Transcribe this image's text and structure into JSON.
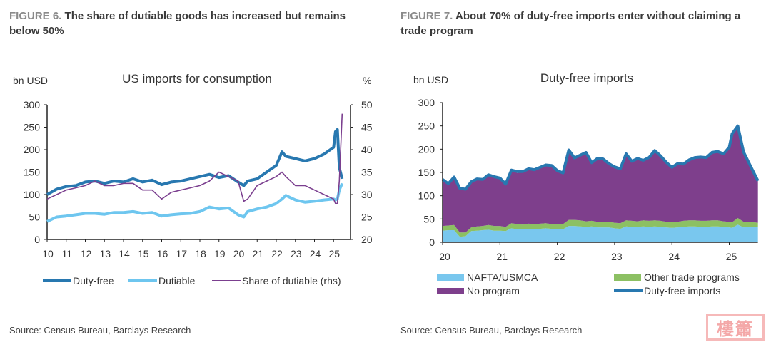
{
  "figure6": {
    "fig_num": "FIGURE 6.",
    "title": "The share of dutiable goods has increased but remains below 50%",
    "source": "Source: Census Bureau, Barclays Research",
    "legend": [
      "Duty-free",
      "Dutiable",
      "Share of dutiable (rhs)"
    ]
  },
  "figure7": {
    "fig_num": "FIGURE 7.",
    "title": "About 70% of duty-free imports enter without claiming a trade program",
    "source": "Source: Census Bureau, Barclays Research",
    "legend": [
      "NAFTA/USMCA",
      "Other trade programs",
      "No program",
      "Duty-free imports"
    ]
  },
  "watermark": "樓簫",
  "chart_data": [
    {
      "type": "line",
      "title": "US imports for consumption",
      "ylabel": "bn USD",
      "y2label": "%",
      "ylim": [
        0,
        300
      ],
      "y2lim": [
        20,
        50
      ],
      "yticks": [
        0,
        50,
        100,
        150,
        200,
        250,
        300
      ],
      "y2ticks": [
        20,
        25,
        30,
        35,
        40,
        45,
        50
      ],
      "xticks": [
        "10",
        "11",
        "12",
        "13",
        "14",
        "15",
        "16",
        "17",
        "18",
        "19",
        "20",
        "21",
        "22",
        "23",
        "24",
        "25"
      ],
      "xlim": [
        2010,
        2025.6
      ],
      "grid": false,
      "legend_position": "bottom",
      "x": [
        2010.0,
        2010.5,
        2011.0,
        2011.5,
        2012.0,
        2012.5,
        2013.0,
        2013.5,
        2014.0,
        2014.5,
        2015.0,
        2015.5,
        2016.0,
        2016.5,
        2017.0,
        2017.5,
        2018.0,
        2018.5,
        2019.0,
        2019.5,
        2020.0,
        2020.3,
        2020.5,
        2021.0,
        2021.5,
        2022.0,
        2022.3,
        2022.5,
        2023.0,
        2023.5,
        2024.0,
        2024.5,
        2025.0,
        2025.1,
        2025.2,
        2025.3,
        2025.45
      ],
      "series": [
        {
          "name": "Duty-free",
          "axis": "left",
          "color": "#2878b0",
          "values": [
            100,
            112,
            118,
            120,
            128,
            130,
            125,
            130,
            128,
            135,
            128,
            132,
            122,
            128,
            130,
            135,
            140,
            145,
            138,
            142,
            128,
            120,
            130,
            135,
            150,
            165,
            195,
            185,
            180,
            175,
            180,
            190,
            205,
            240,
            245,
            160,
            135
          ]
        },
        {
          "name": "Dutiable",
          "axis": "left",
          "color": "#6ec6ef",
          "values": [
            40,
            50,
            52,
            55,
            58,
            58,
            56,
            60,
            60,
            62,
            58,
            60,
            52,
            55,
            57,
            58,
            62,
            72,
            68,
            70,
            55,
            50,
            62,
            68,
            72,
            80,
            90,
            98,
            88,
            83,
            85,
            88,
            90,
            88,
            90,
            110,
            125
          ]
        },
        {
          "name": "Share of dutiable (rhs)",
          "axis": "right",
          "color": "#7b3f8f",
          "values": [
            29,
            30,
            31,
            31.5,
            32,
            33,
            32,
            32,
            32.5,
            32.5,
            31,
            31,
            29,
            30.5,
            31,
            31.5,
            32,
            33,
            35,
            34,
            33,
            28.5,
            29,
            32,
            33,
            34,
            35,
            34,
            32,
            32,
            31,
            30,
            29,
            28,
            28,
            33,
            48
          ]
        }
      ]
    },
    {
      "type": "area",
      "title": "Duty-free imports",
      "ylabel": "bn USD",
      "ylim": [
        0,
        300
      ],
      "yticks": [
        0,
        50,
        100,
        150,
        200,
        250,
        300
      ],
      "xticks": [
        "20",
        "21",
        "22",
        "23",
        "24",
        "25"
      ],
      "xlim": [
        2020,
        2025.5
      ],
      "stacked": true,
      "grid": false,
      "legend_position": "bottom",
      "x": [
        2020.0,
        2020.1,
        2020.2,
        2020.3,
        2020.4,
        2020.5,
        2020.6,
        2020.7,
        2020.8,
        2020.9,
        2021.0,
        2021.1,
        2021.2,
        2021.3,
        2021.4,
        2021.5,
        2021.6,
        2021.7,
        2021.8,
        2021.9,
        2022.0,
        2022.1,
        2022.2,
        2022.3,
        2022.4,
        2022.5,
        2022.6,
        2022.7,
        2022.8,
        2022.9,
        2023.0,
        2023.1,
        2023.2,
        2023.3,
        2023.4,
        2023.5,
        2023.6,
        2023.7,
        2023.8,
        2023.9,
        2024.0,
        2024.1,
        2024.2,
        2024.3,
        2024.4,
        2024.5,
        2024.6,
        2024.7,
        2024.8,
        2024.9,
        2025.0,
        2025.05,
        2025.15,
        2025.25,
        2025.35,
        2025.5
      ],
      "series": [
        {
          "name": "NAFTA/USMCA",
          "color": "#79c7ee",
          "values": [
            25,
            26,
            26,
            12,
            13,
            24,
            25,
            26,
            27,
            25,
            25,
            24,
            30,
            28,
            28,
            29,
            28,
            29,
            30,
            29,
            28,
            28,
            35,
            35,
            34,
            33,
            34,
            32,
            32,
            32,
            30,
            29,
            34,
            33,
            33,
            34,
            33,
            34,
            33,
            32,
            31,
            32,
            33,
            34,
            34,
            33,
            33,
            34,
            34,
            33,
            32,
            31,
            38,
            32,
            33,
            32
          ]
        },
        {
          "name": "Other trade programs",
          "color": "#8cc063",
          "values": [
            10,
            10,
            11,
            9,
            8,
            8,
            9,
            9,
            10,
            10,
            10,
            9,
            11,
            11,
            10,
            11,
            11,
            11,
            11,
            10,
            11,
            11,
            13,
            13,
            13,
            12,
            12,
            12,
            12,
            12,
            12,
            12,
            13,
            13,
            12,
            13,
            13,
            13,
            13,
            12,
            12,
            12,
            13,
            13,
            13,
            13,
            13,
            13,
            13,
            12,
            12,
            12,
            14,
            12,
            11,
            10
          ]
        },
        {
          "name": "No program",
          "color": "#7e3f8c",
          "values": [
            100,
            90,
            103,
            95,
            93,
            98,
            102,
            100,
            108,
            106,
            103,
            92,
            114,
            110,
            114,
            118,
            117,
            121,
            125,
            126,
            115,
            110,
            150,
            135,
            140,
            148,
            125,
            136,
            135,
            125,
            120,
            117,
            143,
            128,
            135,
            129,
            136,
            150,
            140,
            128,
            118,
            125,
            122,
            130,
            135,
            137,
            136,
            146,
            148,
            145,
            160,
            190,
            198,
            150,
            125,
            90
          ]
        },
        {
          "name": "Duty-free imports",
          "color": "#2878b0",
          "type": "line",
          "values": [
            135,
            126,
            140,
            116,
            114,
            130,
            136,
            135,
            145,
            141,
            138,
            125,
            155,
            152,
            152,
            158,
            156,
            161,
            166,
            165,
            154,
            149,
            198,
            181,
            187,
            193,
            171,
            180,
            179,
            169,
            162,
            158,
            190,
            174,
            180,
            176,
            182,
            197,
            186,
            172,
            161,
            169,
            168,
            177,
            182,
            183,
            182,
            193,
            195,
            190,
            204,
            233,
            250,
            194,
            169,
            132
          ]
        }
      ]
    }
  ]
}
